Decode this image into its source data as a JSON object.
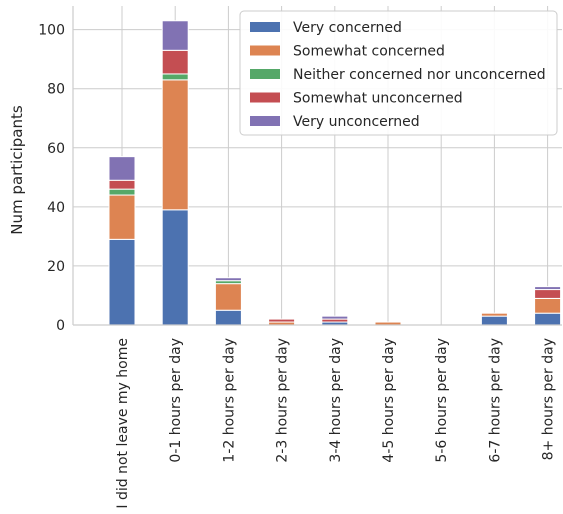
{
  "chart_data": {
    "type": "bar",
    "stacked": true,
    "ylabel": "Num participants",
    "ylim": [
      0,
      108
    ],
    "yticks": [
      0,
      20,
      40,
      60,
      80,
      100
    ],
    "grid": true,
    "legend_position": "top-right",
    "categories": [
      "I did not leave my home",
      "0-1 hours per day",
      "1-2 hours per day",
      "2-3 hours per day",
      "3-4 hours per day",
      "4-5 hours per day",
      "5-6 hours per day",
      "6-7 hours per day",
      "8+ hours per day"
    ],
    "series": [
      {
        "name": "Very concerned",
        "color": "#4c72b0",
        "values": [
          29,
          39,
          5,
          0,
          1,
          0,
          0,
          3,
          4
        ]
      },
      {
        "name": "Somewhat concerned",
        "color": "#dd8452",
        "values": [
          15,
          44,
          9,
          1,
          0,
          1,
          0,
          1,
          5
        ]
      },
      {
        "name": "Neither concerned nor unconcerned",
        "color": "#55a868",
        "values": [
          2,
          2,
          1,
          0,
          0,
          0,
          0,
          0,
          0
        ]
      },
      {
        "name": "Somewhat unconcerned",
        "color": "#c44e52",
        "values": [
          3,
          8,
          0,
          1,
          1,
          0,
          0,
          0,
          3
        ]
      },
      {
        "name": "Very unconcerned",
        "color": "#8172b3",
        "values": [
          8,
          10,
          1,
          0,
          1,
          0,
          0,
          0,
          1
        ]
      }
    ]
  }
}
